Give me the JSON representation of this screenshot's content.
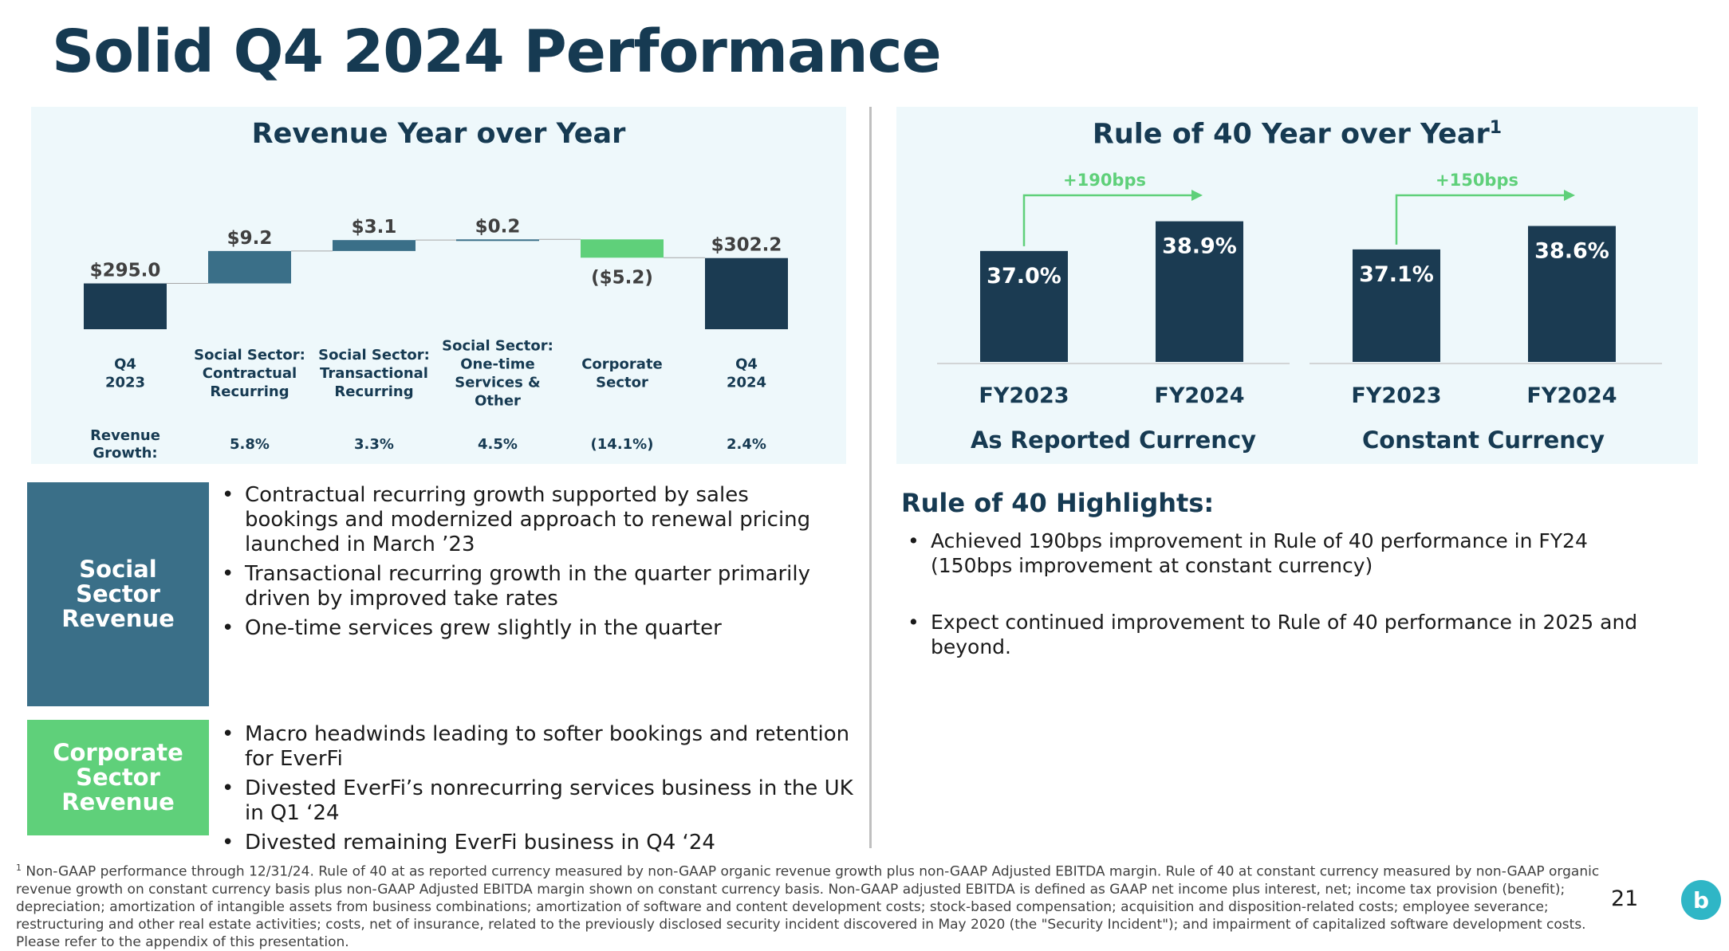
{
  "title": "Solid Q4 2024 Performance",
  "colors": {
    "navy": "#163a52",
    "dark_bar": "#1b3b52",
    "teal_bar": "#3a6f88",
    "green": "#5fd07a",
    "panel_bg": "#eef8fb"
  },
  "revenue_panel": {
    "title": "Revenue Year over Year",
    "growth_row_label": "Revenue Growth:",
    "bars": [
      {
        "label": "$295.0",
        "category": "Q4\n2023",
        "growth": ""
      },
      {
        "label": "$9.2",
        "category": "Social Sector:\nContractual\nRecurring",
        "growth": "5.8%"
      },
      {
        "label": "$3.1",
        "category": "Social Sector:\nTransactional\nRecurring",
        "growth": "3.3%"
      },
      {
        "label": "$0.2",
        "category": "Social Sector:\nOne-time\nServices &\nOther",
        "growth": "4.5%"
      },
      {
        "label": "($5.2)",
        "category": "Corporate\nSector",
        "growth": "(14.1%)"
      },
      {
        "label": "$302.2",
        "category": "Q4\n2024",
        "growth": "2.4%"
      }
    ]
  },
  "rule40_panel": {
    "title": "Rule of 40 Year over Year",
    "title_sup": "1",
    "groups": [
      {
        "name": "As Reported Currency",
        "improvement": "+190bps",
        "bars": [
          {
            "label": "FY2023",
            "value_text": "37.0%"
          },
          {
            "label": "FY2024",
            "value_text": "38.9%"
          }
        ]
      },
      {
        "name": "Constant Currency",
        "improvement": "+150bps",
        "bars": [
          {
            "label": "FY2023",
            "value_text": "37.1%"
          },
          {
            "label": "FY2024",
            "value_text": "38.6%"
          }
        ]
      }
    ]
  },
  "chart_data": [
    {
      "type": "waterfall",
      "title": "Revenue Year over Year",
      "categories": [
        "Q4 2023",
        "Social Sector: Contractual Recurring",
        "Social Sector: Transactional Recurring",
        "Social Sector: One-time Services & Other",
        "Corporate Sector",
        "Q4 2024"
      ],
      "values": [
        295.0,
        9.2,
        3.1,
        0.2,
        -5.2,
        302.2
      ],
      "kinds": [
        "total",
        "delta",
        "delta",
        "delta",
        "delta",
        "total"
      ],
      "revenue_growth": [
        "",
        "5.8%",
        "3.3%",
        "4.5%",
        "(14.1%)",
        "2.4%"
      ]
    },
    {
      "type": "bar",
      "title": "Rule of 40 Year over Year",
      "series": [
        {
          "name": "As Reported Currency",
          "categories": [
            "FY2023",
            "FY2024"
          ],
          "values": [
            37.0,
            38.9
          ]
        },
        {
          "name": "Constant Currency",
          "categories": [
            "FY2023",
            "FY2024"
          ],
          "values": [
            37.1,
            38.6
          ]
        }
      ]
    }
  ],
  "social_box": {
    "label": "Social\nSector\nRevenue"
  },
  "social_bullets": [
    "Contractual recurring growth supported by sales bookings and modernized approach to renewal pricing launched in March ’23",
    "Transactional recurring growth in the quarter primarily driven by improved take rates",
    "One-time services grew slightly in the quarter"
  ],
  "corporate_box": {
    "label": "Corporate\nSector\nRevenue"
  },
  "corporate_bullets": [
    "Macro headwinds leading to softer bookings and retention for EverFi",
    "Divested EverFi’s nonrecurring services business in the UK in Q1 ‘24",
    "Divested remaining EverFi business in Q4 ‘24"
  ],
  "highlights": {
    "title": "Rule of 40 Highlights:",
    "bullets": [
      "Achieved 190bps improvement in Rule of 40 performance in FY24 (150bps improvement at constant currency)",
      "Expect continued improvement to Rule of 40 performance in 2025 and beyond."
    ]
  },
  "footnote": {
    "sup": "1",
    "text": "Non-GAAP performance through 12/31/24. Rule of 40 at as reported currency measured by non-GAAP organic revenue growth plus non-GAAP Adjusted EBITDA margin. Rule of 40 at constant currency measured by non-GAAP organic revenue growth on constant currency basis plus non-GAAP Adjusted EBITDA margin shown on constant currency basis. Non-GAAP adjusted EBITDA is defined as GAAP net income plus interest, net; income tax provision (benefit); depreciation; amortization of intangible assets from business combinations; amortization of software and content development costs; stock-based compensation; acquisition and disposition-related costs; employee severance; restructuring and other real estate activities; costs, net of insurance, related to the previously disclosed security incident discovered in May 2020 (the \"Security Incident\"); and impairment of capitalized software development costs. Please refer to the appendix of this presentation."
  },
  "page_number": "21",
  "logo": {
    "icon": "blackbaud-logo-icon",
    "text": "b"
  }
}
